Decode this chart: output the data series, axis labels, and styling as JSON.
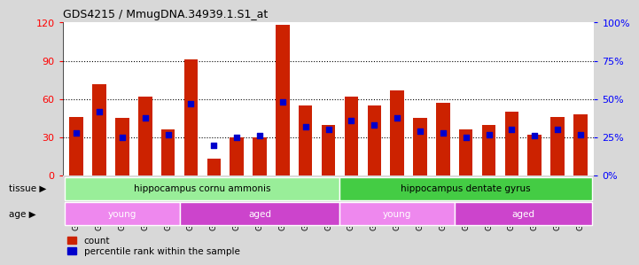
{
  "title": "GDS4215 / MmugDNA.34939.1.S1_at",
  "samples": [
    "GSM297138",
    "GSM297139",
    "GSM297140",
    "GSM297141",
    "GSM297142",
    "GSM297143",
    "GSM297144",
    "GSM297145",
    "GSM297146",
    "GSM297147",
    "GSM297148",
    "GSM297149",
    "GSM297150",
    "GSM297151",
    "GSM297152",
    "GSM297153",
    "GSM297154",
    "GSM297155",
    "GSM297156",
    "GSM297157",
    "GSM297158",
    "GSM297159",
    "GSM297160"
  ],
  "counts": [
    46,
    72,
    45,
    62,
    36,
    91,
    13,
    30,
    30,
    118,
    55,
    40,
    62,
    55,
    67,
    45,
    57,
    36,
    40,
    50,
    32,
    46,
    48
  ],
  "percentile_ranks": [
    28,
    42,
    25,
    38,
    27,
    47,
    20,
    25,
    26,
    48,
    32,
    30,
    36,
    33,
    38,
    29,
    28,
    25,
    27,
    30,
    26,
    30,
    27
  ],
  "bar_color": "#cc2200",
  "dot_color": "#0000cc",
  "ylim_left": [
    0,
    120
  ],
  "ylim_right": [
    0,
    100
  ],
  "yticks_left": [
    0,
    30,
    60,
    90,
    120
  ],
  "yticks_right": [
    0,
    25,
    50,
    75,
    100
  ],
  "ytick_labels_right": [
    "0%",
    "25%",
    "50%",
    "75%",
    "100%"
  ],
  "grid_values": [
    30,
    60,
    90
  ],
  "tissue_groups": [
    {
      "label": "hippocampus cornu ammonis",
      "start": 0,
      "end": 12,
      "color": "#99ee99"
    },
    {
      "label": "hippocampus dentate gyrus",
      "start": 12,
      "end": 23,
      "color": "#44cc44"
    }
  ],
  "age_groups": [
    {
      "label": "young",
      "start": 0,
      "end": 5,
      "color": "#ee88ee"
    },
    {
      "label": "aged",
      "start": 5,
      "end": 12,
      "color": "#cc44cc"
    },
    {
      "label": "young",
      "start": 12,
      "end": 17,
      "color": "#ee88ee"
    },
    {
      "label": "aged",
      "start": 17,
      "end": 23,
      "color": "#cc44cc"
    }
  ],
  "tissue_row_label": "tissue",
  "age_row_label": "age",
  "fig_bg_color": "#d8d8d8",
  "plot_bg_color": "#ffffff",
  "legend_items": [
    {
      "label": "count",
      "color": "#cc2200"
    },
    {
      "label": "percentile rank within the sample",
      "color": "#0000cc"
    }
  ]
}
